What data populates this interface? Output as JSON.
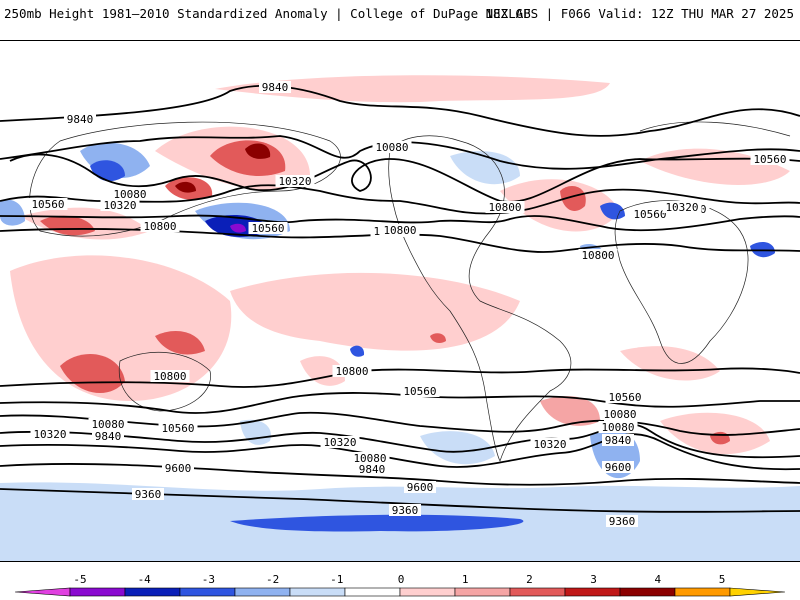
{
  "header": {
    "title_left": "250mb Height 1981–2010 Standardized Anomaly | College of DuPage NEXLAB",
    "title_right": "18Z GFS | F066 Valid: 12Z THU MAR 27 2025"
  },
  "contour_labels": [
    "9840",
    "9840",
    "10080",
    "10560",
    "10320",
    "10800",
    "10560",
    "10080",
    "10320",
    "10320",
    "10560",
    "10800",
    "10800",
    "10560",
    "10800",
    "10560",
    "10080",
    "9840",
    "10320",
    "10560",
    "10320",
    "10080",
    "9840",
    "9600",
    "9360",
    "9600",
    "9360",
    "10800",
    "10560",
    "10080",
    "9840",
    "10320",
    "9600",
    "9840",
    "10080",
    "10320",
    "10560",
    "9360",
    "10800",
    "10800"
  ],
  "colorbar": {
    "tick_labels": [
      "-5",
      "-4",
      "-3",
      "-2",
      "-1",
      "0",
      "1",
      "2",
      "3",
      "4",
      "5"
    ],
    "colors": [
      "#e040e0",
      "#8a0ad0",
      "#0a1fb8",
      "#2f55e0",
      "#8fb2f0",
      "#c9ddf7",
      "#ffffff",
      "#ffcfcf",
      "#f5a5a5",
      "#e25a5a",
      "#c01818",
      "#8b0000",
      "#ff9a00",
      "#ffd200"
    ]
  }
}
